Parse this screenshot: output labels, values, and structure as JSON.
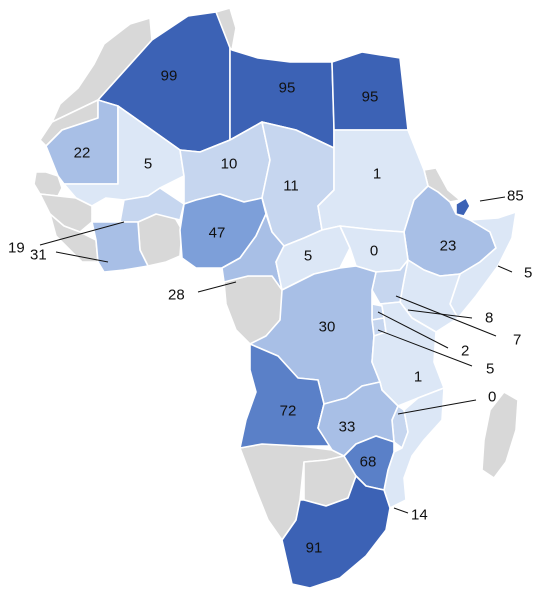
{
  "colors": {
    "q1": "#dce7f6",
    "q2": "#c6d6ef",
    "q3": "#a8bfe6",
    "q4": "#7d9fd9",
    "q5": "#5a80c8",
    "q6": "#3c62b5",
    "nodata": "#d8d8d8"
  },
  "regions": [
    {
      "name": "Algeria",
      "value": "99"
    },
    {
      "name": "Libya",
      "value": "95"
    },
    {
      "name": "Egypt",
      "value": "95"
    },
    {
      "name": "Mauritania",
      "value": "22"
    },
    {
      "name": "Mali",
      "value": "5"
    },
    {
      "name": "Niger",
      "value": "10"
    },
    {
      "name": "Chad",
      "value": "11"
    },
    {
      "name": "Sudan",
      "value": "1"
    },
    {
      "name": "Djibouti",
      "value": "85"
    },
    {
      "name": "Ethiopia",
      "value": "23"
    },
    {
      "name": "Somalia",
      "value": "5"
    },
    {
      "name": "Nigeria",
      "value": "47"
    },
    {
      "name": "Burkina Faso",
      "value": "19"
    },
    {
      "name": "Cote d'Ivoire",
      "value": "31"
    },
    {
      "name": "Cameroon",
      "value": "28"
    },
    {
      "name": "Central African Republic",
      "value": "5"
    },
    {
      "name": "South Sudan",
      "value": "0"
    },
    {
      "name": "Kenya",
      "value": "8"
    },
    {
      "name": "Uganda",
      "value": "7"
    },
    {
      "name": "Rwanda",
      "value": "2"
    },
    {
      "name": "Burundi",
      "value": "5"
    },
    {
      "name": "DR Congo",
      "value": "30"
    },
    {
      "name": "Tanzania",
      "value": "1"
    },
    {
      "name": "Malawi",
      "value": "0"
    },
    {
      "name": "Angola",
      "value": "72"
    },
    {
      "name": "Zambia",
      "value": "33"
    },
    {
      "name": "Zimbabwe",
      "value": "68"
    },
    {
      "name": "Mozambique",
      "value": "14"
    },
    {
      "name": "South Africa",
      "value": "91"
    }
  ]
}
